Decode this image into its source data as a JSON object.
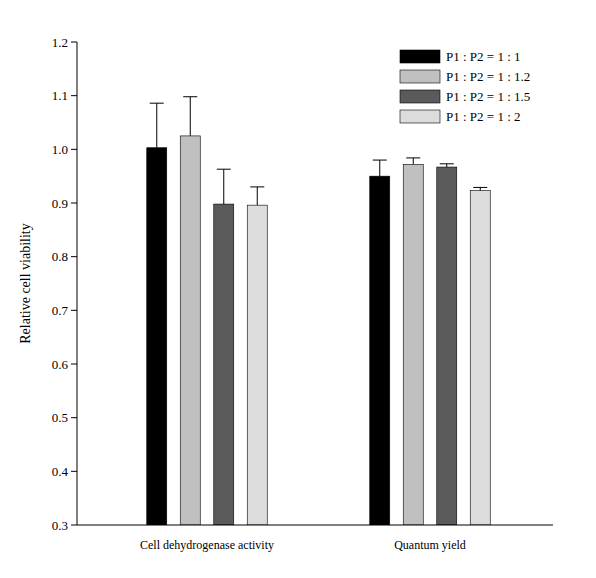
{
  "chart_data": {
    "type": "bar",
    "categories": [
      "Cell dehydrogenase activity",
      "Quantum yield"
    ],
    "y_label": "Relative cell viability",
    "series": [
      {
        "name": "P1 : P2 = 1 : 1",
        "color": "#000000",
        "values": [
          1.003,
          0.95
        ],
        "errors": [
          0.083,
          0.03
        ]
      },
      {
        "name": "P1 : P2 = 1 : 1.2",
        "color": "#c0c0c0",
        "values": [
          1.025,
          0.972
        ],
        "errors": [
          0.073,
          0.012
        ]
      },
      {
        "name": "P1 : P2 = 1 : 1.5",
        "color": "#5a5a5a",
        "values": [
          0.898,
          0.967
        ],
        "errors": [
          0.065,
          0.006
        ]
      },
      {
        "name": "P1 : P2 = 1 : 2",
        "color": "#dcdcdc",
        "values": [
          0.896,
          0.923
        ],
        "errors": [
          0.034,
          0.006
        ]
      }
    ],
    "ylim": [
      0.3,
      1.2
    ],
    "yticks": [
      0.3,
      0.4,
      0.5,
      0.6,
      0.7,
      0.8,
      0.9,
      {
        "value": 1,
        "label": "1.0"
      },
      1.1,
      1.2
    ],
    "legend": "top-right",
    "grid": false
  }
}
